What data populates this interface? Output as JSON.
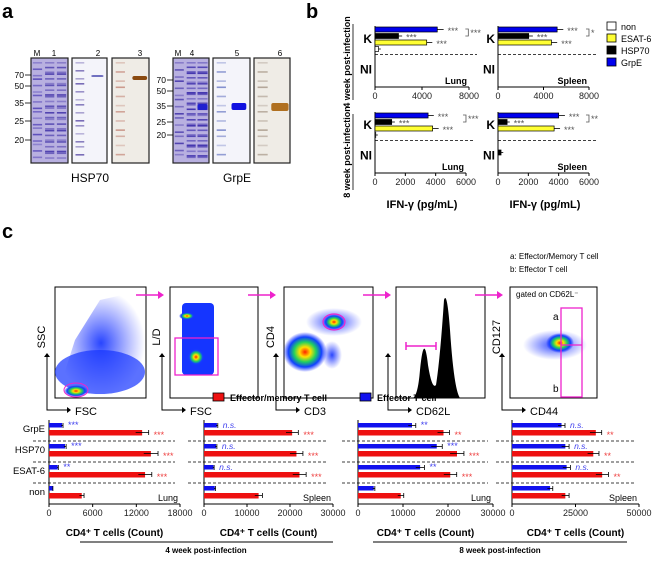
{
  "panel_labels": {
    "a": "a",
    "b": "b",
    "c": "c"
  },
  "panel_a": {
    "hsp70": {
      "title": "HSP70",
      "lanes": [
        "M",
        "1",
        "2",
        "3"
      ],
      "markers": [
        "70",
        "50",
        "35",
        "25",
        "20"
      ]
    },
    "grpe": {
      "title": "GrpE",
      "lanes": [
        "M",
        "4",
        "5",
        "6"
      ],
      "markers": [
        "70",
        "50",
        "35",
        "25",
        "20"
      ]
    }
  },
  "panel_b": {
    "row_labels": [
      "4 week post-infection",
      "8 week post-infection"
    ],
    "legend": [
      {
        "name": "non",
        "color": "#ffffff"
      },
      {
        "name": "ESAT-6",
        "color": "#ffff33"
      },
      {
        "name": "HSP70",
        "color": "#000000"
      },
      {
        "name": "GrpE",
        "color": "#0000ee"
      }
    ],
    "xlabel": "IFN-γ (pg/mL)"
  },
  "panel_c": {
    "flow": {
      "plots": [
        {
          "x": "FSC",
          "y": "SSC"
        },
        {
          "x": "FSC",
          "y": "L/D"
        },
        {
          "x": "CD3",
          "y": "CD4"
        },
        {
          "x": "CD62L",
          "y": ""
        },
        {
          "x": "CD44",
          "y": "CD127"
        }
      ],
      "gate_note": "gated on CD62L⁻",
      "gate_a": "a",
      "gate_b": "b",
      "key_a": "a: Effector/Memory T cell",
      "key_b": "b: Effector T cell"
    },
    "legend": [
      {
        "name": "Effector/memory T cell",
        "color": "#ee1111"
      },
      {
        "name": "Effector T cell",
        "color": "#1111ee"
      }
    ],
    "timepoints": [
      "4 week post-infection",
      "8 week post-infection"
    ]
  },
  "chart_data": [
    {
      "type": "bar",
      "id": "b1",
      "title": "Lung",
      "timepoint": "4 week post-infection",
      "orientation": "horizontal",
      "groups": [
        "K",
        "NI"
      ],
      "series": [
        {
          "name": "GrpE",
          "values": [
            5300,
            0
          ]
        },
        {
          "name": "HSP70",
          "values": [
            2000,
            0
          ]
        },
        {
          "name": "ESAT-6",
          "values": [
            4400,
            0
          ]
        },
        {
          "name": "non",
          "values": [
            300,
            0
          ]
        }
      ],
      "annotations": [
        "***",
        "***",
        "***",
        "***"
      ],
      "xlim": [
        0,
        8000
      ],
      "ticks": [
        "0",
        "4000",
        "8000"
      ],
      "xlabel": "IFN-γ (pg/mL)"
    },
    {
      "type": "bar",
      "id": "b2",
      "title": "Spleen",
      "timepoint": "4 week post-infection",
      "orientation": "horizontal",
      "groups": [
        "K",
        "NI"
      ],
      "series": [
        {
          "name": "GrpE",
          "values": [
            5200,
            0
          ]
        },
        {
          "name": "HSP70",
          "values": [
            2700,
            0
          ]
        },
        {
          "name": "ESAT-6",
          "values": [
            4700,
            0
          ]
        },
        {
          "name": "non",
          "values": [
            0,
            0
          ]
        }
      ],
      "annotations": [
        "***",
        "***",
        "***",
        "*"
      ],
      "xlim": [
        0,
        8000
      ],
      "ticks": [
        "0",
        "4000",
        "8000"
      ],
      "xlabel": "IFN-γ (pg/mL)"
    },
    {
      "type": "bar",
      "id": "b3",
      "title": "Lung",
      "timepoint": "8 week post-infection",
      "orientation": "horizontal",
      "groups": [
        "K",
        "NI"
      ],
      "series": [
        {
          "name": "GrpE",
          "values": [
            3500,
            0
          ]
        },
        {
          "name": "HSP70",
          "values": [
            1100,
            0
          ]
        },
        {
          "name": "ESAT-6",
          "values": [
            3800,
            0
          ]
        },
        {
          "name": "non",
          "values": [
            50,
            0
          ]
        }
      ],
      "annotations": [
        "***",
        "***",
        "***",
        "***"
      ],
      "xlim": [
        0,
        6000
      ],
      "ticks": [
        "0",
        "2000",
        "4000",
        "6000"
      ],
      "xlabel": "IFN-γ (pg/mL)"
    },
    {
      "type": "bar",
      "id": "b4",
      "title": "Spleen",
      "timepoint": "8 week post-infection",
      "orientation": "horizontal",
      "groups": [
        "K",
        "NI"
      ],
      "series": [
        {
          "name": "GrpE",
          "values": [
            4000,
            0
          ]
        },
        {
          "name": "HSP70",
          "values": [
            600,
            200
          ]
        },
        {
          "name": "ESAT-6",
          "values": [
            3700,
            0
          ]
        },
        {
          "name": "non",
          "values": [
            0,
            0
          ]
        }
      ],
      "annotations": [
        "***",
        "***",
        "***",
        "**"
      ],
      "xlim": [
        0,
        6000
      ],
      "ticks": [
        "0",
        "2000",
        "4000",
        "6000"
      ],
      "xlabel": "IFN-γ (pg/mL)"
    },
    {
      "type": "bar",
      "id": "c1",
      "title": "Lung",
      "timepoint": "4 week post-infection",
      "orientation": "horizontal",
      "categories": [
        "GrpE",
        "HSP70",
        "ESAT-6",
        "non"
      ],
      "series": [
        {
          "name": "Effector T cell",
          "values": [
            1800,
            2200,
            1200,
            500
          ],
          "stats": [
            "***",
            "***",
            "**",
            ""
          ]
        },
        {
          "name": "Effector/memory T cell",
          "values": [
            12800,
            14000,
            13200,
            4500
          ],
          "stats": [
            "***",
            "***",
            "***",
            ""
          ]
        }
      ],
      "xlim": [
        0,
        18000
      ],
      "ticks": [
        "0",
        "6000",
        "12000",
        "18000"
      ],
      "xlabel": "CD4⁺ T cells (Count)"
    },
    {
      "type": "bar",
      "id": "c2",
      "title": "Spleen",
      "timepoint": "4 week post-infection",
      "orientation": "horizontal",
      "categories": [
        "GrpE",
        "HSP70",
        "ESAT-6",
        "non"
      ],
      "series": [
        {
          "name": "Effector T cell",
          "values": [
            3000,
            2800,
            2200,
            2500
          ],
          "stats": [
            "n.s.",
            "n.s.",
            "n.s.",
            ""
          ]
        },
        {
          "name": "Effector/memory T cell",
          "values": [
            20500,
            21500,
            22200,
            12700
          ],
          "stats": [
            "***",
            "***",
            "***",
            ""
          ]
        }
      ],
      "xlim": [
        0,
        30000
      ],
      "ticks": [
        "0",
        "10000",
        "20000",
        "30000"
      ],
      "xlabel": "CD4⁺ T cells (Count)"
    },
    {
      "type": "bar",
      "id": "c3",
      "title": "Lung",
      "timepoint": "8 week post-infection",
      "orientation": "horizontal",
      "categories": [
        "GrpE",
        "HSP70",
        "ESAT-6",
        "non"
      ],
      "series": [
        {
          "name": "Effector T cell",
          "values": [
            12000,
            17500,
            13800,
            3500
          ],
          "stats": [
            "**",
            "***",
            "**",
            ""
          ]
        },
        {
          "name": "Effector/memory T cell",
          "values": [
            19000,
            22000,
            20500,
            9500
          ],
          "stats": [
            "**",
            "***",
            "***",
            ""
          ]
        }
      ],
      "xlim": [
        0,
        30000
      ],
      "ticks": [
        "0",
        "10000",
        "20000",
        "30000"
      ],
      "xlabel": "CD4⁺ T cells (Count)"
    },
    {
      "type": "bar",
      "id": "c4",
      "title": "Spleen",
      "timepoint": "8 week post-infection",
      "orientation": "horizontal",
      "categories": [
        "GrpE",
        "HSP70",
        "ESAT-6",
        "non"
      ],
      "series": [
        {
          "name": "Effector T cell",
          "values": [
            19500,
            21000,
            21500,
            15000
          ],
          "stats": [
            "n.s.",
            "n.s.",
            "n.s.",
            ""
          ]
        },
        {
          "name": "Effector/memory T cell",
          "values": [
            33000,
            32000,
            35500,
            21000
          ],
          "stats": [
            "**",
            "**",
            "**",
            ""
          ]
        }
      ],
      "xlim": [
        0,
        50000
      ],
      "ticks": [
        "0",
        "25000",
        "50000"
      ],
      "xlabel": "CD4⁺ T cells (Count)"
    }
  ]
}
